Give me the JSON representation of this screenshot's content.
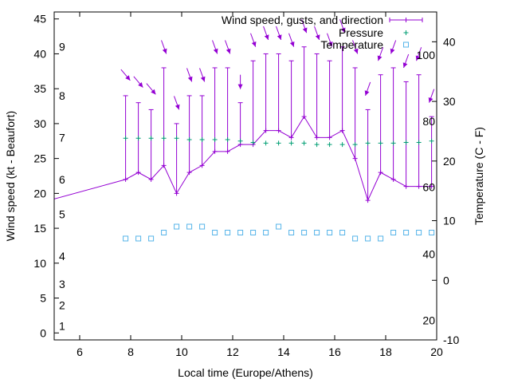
{
  "chart_data": {
    "type": "line",
    "xlabel": "Local time (Europe/Athens)",
    "ylabel": "Wind speed (kt - Beaufort)",
    "y2label": "Temperature (C - F)",
    "xlim": [
      5,
      20
    ],
    "ylim": [
      -1,
      46
    ],
    "y2lim": [
      -10,
      45
    ],
    "x_ticks": [
      "6",
      "8",
      "10",
      "12",
      "14",
      "16",
      "18",
      "20"
    ],
    "y_ticks": [
      "0",
      "5",
      "10",
      "15",
      "20",
      "25",
      "30",
      "35",
      "40",
      "45"
    ],
    "y2_ticks": [
      "-10",
      "0",
      "10",
      "20",
      "30",
      "40"
    ],
    "beaufort_labels": [
      "1",
      "2",
      "3",
      "4",
      "5",
      "6",
      "7",
      "8",
      "9"
    ],
    "beaufort_y": [
      1,
      4,
      7,
      11,
      17,
      22,
      28,
      34,
      41
    ],
    "fahrenheit_labels": [
      "20",
      "40",
      "60",
      "80",
      "100"
    ],
    "fahrenheit_y2": [
      -6.7,
      4.4,
      15.6,
      26.7,
      37.8
    ],
    "legend": {
      "position": "top-right",
      "entries": [
        "Wind speed, gusts, and direction",
        "Pressure",
        "Temperature"
      ]
    },
    "colors": {
      "wind": "#9400d3",
      "pressure": "#009e73",
      "temperature": "#56b4e9"
    },
    "wind": {
      "x": [
        4.8,
        7.8,
        8.3,
        8.8,
        9.3,
        9.8,
        10.3,
        10.8,
        11.3,
        11.8,
        12.3,
        12.8,
        13.3,
        13.8,
        14.3,
        14.8,
        15.3,
        15.8,
        16.3,
        16.8,
        17.3,
        17.8,
        18.3,
        18.8,
        19.3,
        19.8
      ],
      "speed": [
        19,
        22,
        23,
        22,
        24,
        20,
        23,
        24,
        26,
        26,
        27,
        27,
        29,
        29,
        28,
        31,
        28,
        28,
        29,
        25,
        19,
        23,
        22,
        21,
        21,
        21
      ],
      "gust": [
        null,
        34,
        33,
        32,
        38,
        30,
        34,
        34,
        38,
        38,
        33,
        39,
        40,
        40,
        39,
        41,
        40,
        39,
        41,
        38,
        32,
        37,
        38,
        36,
        37,
        31
      ],
      "direction_deg": [
        null,
        320,
        320,
        320,
        340,
        340,
        340,
        340,
        340,
        340,
        0,
        340,
        340,
        340,
        340,
        340,
        340,
        340,
        340,
        340,
        20,
        20,
        20,
        20,
        20,
        20
      ]
    },
    "pressure": {
      "x": [
        7.8,
        8.3,
        8.8,
        9.3,
        9.8,
        10.3,
        10.8,
        11.3,
        11.8,
        12.3,
        12.8,
        13.3,
        13.8,
        14.3,
        14.8,
        15.3,
        15.8,
        16.3,
        16.8,
        17.3,
        17.8,
        18.3,
        18.8,
        19.3,
        19.8
      ],
      "y": [
        27.9,
        27.9,
        27.9,
        27.9,
        27.9,
        27.7,
        27.7,
        27.7,
        27.7,
        27.5,
        27.3,
        27.2,
        27.2,
        27.2,
        27.2,
        27.0,
        27.0,
        27.0,
        27.0,
        27.2,
        27.2,
        27.2,
        27.3,
        27.3,
        27.5
      ]
    },
    "temperature": {
      "x": [
        7.8,
        8.3,
        8.8,
        9.3,
        9.8,
        10.3,
        10.8,
        11.3,
        11.8,
        12.3,
        12.8,
        13.3,
        13.8,
        14.3,
        14.8,
        15.3,
        15.8,
        16.3,
        16.8,
        17.3,
        17.8,
        18.3,
        18.8,
        19.3,
        19.8
      ],
      "y": [
        7,
        7,
        7,
        8,
        9,
        9,
        9,
        8,
        8,
        8,
        8,
        8,
        9,
        8,
        8,
        8,
        8,
        8,
        7,
        7,
        7,
        8,
        8,
        8,
        8
      ]
    }
  }
}
